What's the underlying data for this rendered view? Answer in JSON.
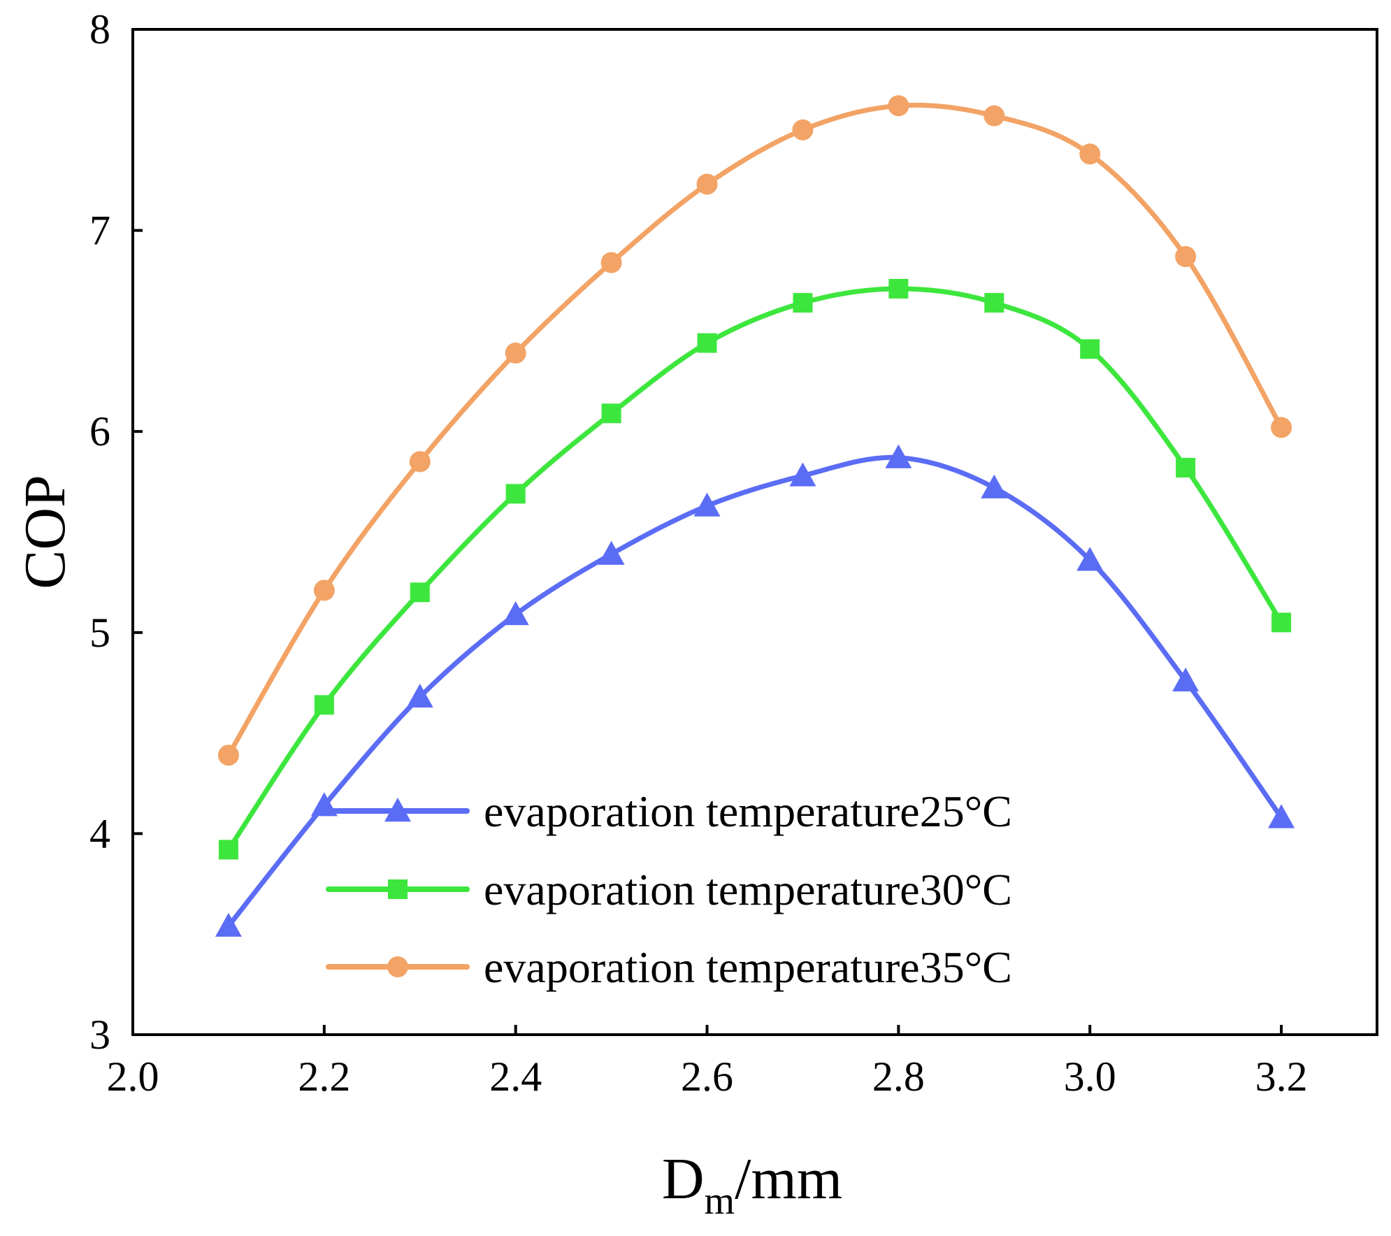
{
  "chart_data": {
    "type": "line",
    "title": "",
    "xlabel": "D",
    "xlabel_sub": "m",
    "xlabel_unit": "/mm",
    "ylabel": "COP",
    "xlim": [
      2.0,
      3.3
    ],
    "ylim": [
      3,
      8
    ],
    "xticks": [
      "2.0",
      "2.2",
      "2.4",
      "2.6",
      "2.8",
      "3.0",
      "3.2"
    ],
    "yticks": [
      "3",
      "4",
      "5",
      "6",
      "7",
      "8"
    ],
    "grid": false,
    "legend_position": "bottom-center",
    "x": [
      2.1,
      2.2,
      2.3,
      2.4,
      2.5,
      2.6,
      2.7,
      2.8,
      2.9,
      3.0,
      3.1,
      3.2
    ],
    "series": [
      {
        "name": "evaporation temperature25°C",
        "color": "#5b6cf5",
        "marker": "triangle",
        "values": [
          3.54,
          4.14,
          4.68,
          5.09,
          5.39,
          5.63,
          5.78,
          5.87,
          5.72,
          5.36,
          4.76,
          4.08
        ]
      },
      {
        "name": "evaporation temperature30°C",
        "color": "#3de63d",
        "marker": "square",
        "values": [
          3.92,
          4.64,
          5.2,
          5.69,
          6.09,
          6.44,
          6.64,
          6.71,
          6.64,
          6.41,
          5.82,
          5.05
        ]
      },
      {
        "name": "evaporation temperature35°C",
        "color": "#f2a365",
        "marker": "circle",
        "values": [
          4.39,
          5.21,
          5.85,
          6.39,
          6.84,
          7.23,
          7.5,
          7.62,
          7.57,
          7.38,
          6.87,
          6.02
        ]
      }
    ]
  }
}
